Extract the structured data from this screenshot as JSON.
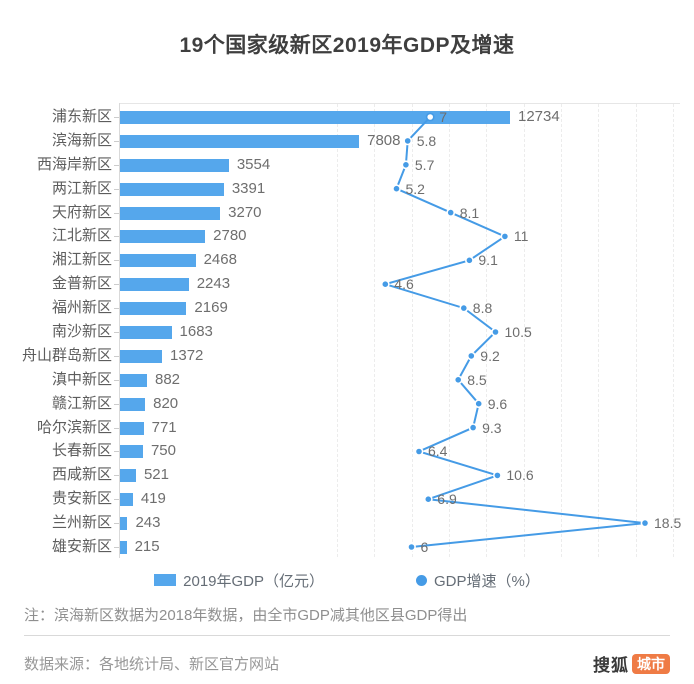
{
  "title": "19个国家级新区2019年GDP及增速",
  "chart_data": {
    "type": "bar",
    "orientation": "horizontal",
    "title": "19个国家级新区2019年GDP及增速",
    "categories": [
      "浦东新区",
      "滨海新区",
      "西海岸新区",
      "两江新区",
      "天府新区",
      "江北新区",
      "湘江新区",
      "金普新区",
      "福州新区",
      "南沙新区",
      "舟山群岛新区",
      "滇中新区",
      "赣江新区",
      "哈尔滨新区",
      "长春新区",
      "西咸新区",
      "贵安新区",
      "兰州新区",
      "雄安新区"
    ],
    "series": [
      {
        "name": "2019年GDP（亿元）",
        "type": "bar",
        "values": [
          12734,
          7808,
          3554,
          3391,
          3270,
          2780,
          2468,
          2243,
          2169,
          1683,
          1372,
          882,
          820,
          771,
          750,
          521,
          419,
          243,
          215
        ]
      },
      {
        "name": "GDP增速（%）",
        "type": "line",
        "values": [
          7,
          5.8,
          5.7,
          5.2,
          8.1,
          11,
          9.1,
          4.6,
          8.8,
          10.5,
          9.2,
          8.5,
          9.6,
          9.3,
          6.4,
          10.6,
          6.9,
          18.5,
          6
        ]
      }
    ],
    "bar_axis_max": 14000,
    "growth_gridline_values": [
      2,
      4,
      6,
      8,
      10,
      12,
      14,
      16,
      18,
      20
    ],
    "legend_position": "bottom",
    "grid": "vertical-dashed",
    "colors": {
      "bar": "#55a7ec",
      "line": "#459be6",
      "value_label": "#6e6e6e"
    }
  },
  "legend": {
    "items": [
      {
        "label": "2019年GDP（亿元）",
        "swatch": "rect"
      },
      {
        "label": "GDP增速（%）",
        "swatch": "dot"
      }
    ]
  },
  "note": "注：滨海新区数据为2018年数据，由全市GDP减其他区县GDP得出",
  "source": "数据来源：各地统计局、新区官方网站",
  "logo": {
    "sohu": "搜狐",
    "city": "城市",
    "badge_color": "#ef7b45"
  }
}
